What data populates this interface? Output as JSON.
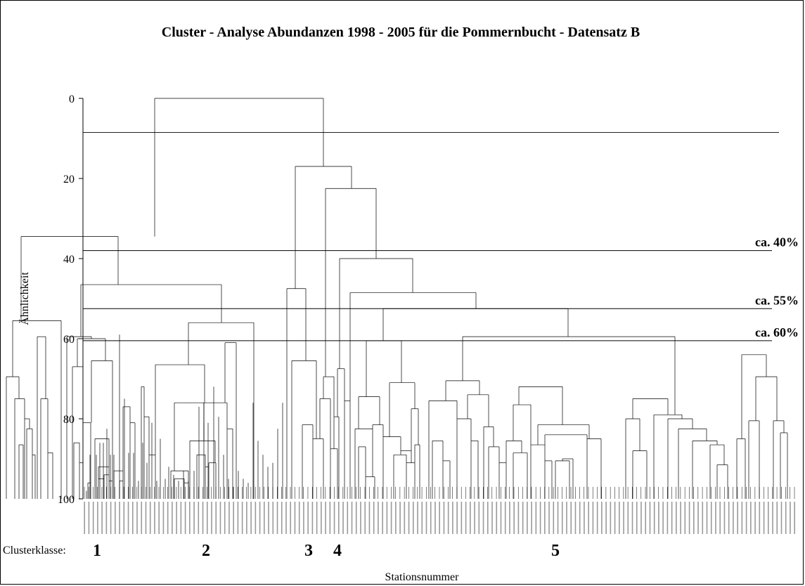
{
  "chart_data": {
    "type": "dendrogram",
    "title": "Cluster - Analyse Abundanzen 1998 - 2005 für die Pommernbucht  - Datensatz B",
    "ylabel": "Ähnlichkeit",
    "xlabel": "Stationsnummer",
    "ylim": [
      0,
      100
    ],
    "yticks": [
      "0",
      "20",
      "40",
      "60",
      "80",
      "100"
    ],
    "grid": false,
    "reference_lines": [
      {
        "value": 8.5,
        "label": ""
      },
      {
        "value": 38,
        "label": "ca. 40%"
      },
      {
        "value": 52.5,
        "label": "ca. 55%"
      },
      {
        "value": 60.5,
        "label": "ca. 60%"
      }
    ],
    "cluster_classes_label": "Clusterklasse:",
    "cluster_classes": [
      "1",
      "2",
      "3",
      "4",
      "5"
    ],
    "leaf_count": 163,
    "merges": [
      {
        "x1": 9,
        "x2": 27,
        "h": 69.5
      },
      {
        "x1": 21,
        "x2": 35,
        "h": 75
      },
      {
        "x1": 27,
        "x2": 33,
        "h": 86.5
      },
      {
        "x1": 35,
        "x2": 42,
        "h": 80
      },
      {
        "x1": 38,
        "x2": 46,
        "h": 82.5
      },
      {
        "x1": 46,
        "x2": 50,
        "h": 89
      },
      {
        "x1": 18,
        "x2": 87,
        "h": 55.5
      },
      {
        "x1": 53,
        "x2": 65,
        "h": 59.5
      },
      {
        "x1": 58,
        "x2": 68,
        "h": 75
      },
      {
        "x1": 68,
        "x2": 75,
        "h": 88.5
      },
      {
        "x1": 30,
        "x2": 168,
        "h": 34.5
      },
      {
        "x1": 95,
        "x2": 130,
        "h": 59.5
      },
      {
        "x1": 110,
        "x2": 150,
        "h": 60
      },
      {
        "x1": 103,
        "x2": 118,
        "h": 67
      },
      {
        "x1": 105,
        "x2": 113,
        "h": 86
      },
      {
        "x1": 113,
        "x2": 118,
        "h": 91
      },
      {
        "x1": 118,
        "x2": 129,
        "h": 81
      },
      {
        "x1": 125,
        "x2": 129,
        "h": 96
      },
      {
        "x1": 130,
        "x2": 160,
        "h": 65.5
      },
      {
        "x1": 135,
        "x2": 155,
        "h": 85
      },
      {
        "x1": 140,
        "x2": 155,
        "h": 92
      },
      {
        "x1": 140,
        "x2": 148,
        "h": 95
      },
      {
        "x1": 148,
        "x2": 155,
        "h": 94
      },
      {
        "x1": 155,
        "x2": 160,
        "h": 95.5
      },
      {
        "x1": 162,
        "x2": 175,
        "h": 93
      },
      {
        "x1": 170,
        "x2": 175,
        "h": 95.5
      },
      {
        "x1": 175,
        "x2": 185,
        "h": 77
      },
      {
        "x1": 185,
        "x2": 192,
        "h": 81
      },
      {
        "x1": 115,
        "x2": 315,
        "h": 46.5
      },
      {
        "x1": 268,
        "x2": 361,
        "h": 56
      },
      {
        "x1": 201,
        "x2": 205,
        "h": 72
      },
      {
        "x1": 205,
        "x2": 212,
        "h": 79.5
      },
      {
        "x1": 212,
        "x2": 221,
        "h": 89
      },
      {
        "x1": 243,
        "x2": 268,
        "h": 93
      },
      {
        "x1": 248,
        "x2": 262,
        "h": 95
      },
      {
        "x1": 262,
        "x2": 268,
        "h": 96
      },
      {
        "x1": 248,
        "x2": 290,
        "h": 76
      },
      {
        "x1": 221,
        "x2": 291,
        "h": 66.5
      },
      {
        "x1": 270,
        "x2": 306,
        "h": 85.5
      },
      {
        "x1": 280,
        "x2": 292,
        "h": 89
      },
      {
        "x1": 292,
        "x2": 297,
        "h": 92
      },
      {
        "x1": 297,
        "x2": 307,
        "h": 91
      },
      {
        "x1": 290,
        "x2": 323,
        "h": 76
      },
      {
        "x1": 323,
        "x2": 331,
        "h": 82.5
      },
      {
        "x1": 320,
        "x2": 336,
        "h": 61
      },
      {
        "x1": 408,
        "x2": 435,
        "h": 47.5
      },
      {
        "x1": 415,
        "x2": 450,
        "h": 65.5
      },
      {
        "x1": 430,
        "x2": 445,
        "h": 81.5
      },
      {
        "x1": 445,
        "x2": 460,
        "h": 85
      },
      {
        "x1": 460,
        "x2": 475,
        "h": 69.5
      },
      {
        "x1": 475,
        "x2": 482,
        "h": 79.5
      },
      {
        "x1": 420,
        "x2": 500,
        "h": 17
      },
      {
        "x1": 455,
        "x2": 470,
        "h": 75
      },
      {
        "x1": 470,
        "x2": 480,
        "h": 87.5
      },
      {
        "x1": 463,
        "x2": 535,
        "h": 22.5
      },
      {
        "x1": 480,
        "x2": 490,
        "h": 67.5
      },
      {
        "x1": 490,
        "x2": 498,
        "h": 75.5
      },
      {
        "x1": 483,
        "x2": 587,
        "h": 40
      },
      {
        "x1": 498,
        "x2": 677,
        "h": 48.5
      },
      {
        "x1": 545,
        "x2": 808,
        "h": 52.5
      },
      {
        "x1": 521,
        "x2": 571,
        "h": 60.5
      },
      {
        "x1": 505,
        "x2": 530,
        "h": 82.5
      },
      {
        "x1": 510,
        "x2": 520,
        "h": 87
      },
      {
        "x1": 520,
        "x2": 533,
        "h": 94.5
      },
      {
        "x1": 510,
        "x2": 540,
        "h": 74.5
      },
      {
        "x1": 530,
        "x2": 545,
        "h": 81.5
      },
      {
        "x1": 554,
        "x2": 590,
        "h": 71
      },
      {
        "x1": 545,
        "x2": 570,
        "h": 84.5
      },
      {
        "x1": 560,
        "x2": 578,
        "h": 89
      },
      {
        "x1": 570,
        "x2": 585,
        "h": 88
      },
      {
        "x1": 585,
        "x2": 595,
        "h": 77.5
      },
      {
        "x1": 578,
        "x2": 590,
        "h": 91
      },
      {
        "x1": 590,
        "x2": 597,
        "h": 86.5
      },
      {
        "x1": 658,
        "x2": 960,
        "h": 59.5
      },
      {
        "x1": 634,
        "x2": 682,
        "h": 70.5
      },
      {
        "x1": 610,
        "x2": 650,
        "h": 75.5
      },
      {
        "x1": 615,
        "x2": 630,
        "h": 85.5
      },
      {
        "x1": 630,
        "x2": 640,
        "h": 90.5
      },
      {
        "x1": 665,
        "x2": 695,
        "h": 74
      },
      {
        "x1": 650,
        "x2": 670,
        "h": 80
      },
      {
        "x1": 670,
        "x2": 680,
        "h": 85.5
      },
      {
        "x1": 688,
        "x2": 702,
        "h": 82
      },
      {
        "x1": 695,
        "x2": 710,
        "h": 87
      },
      {
        "x1": 710,
        "x2": 720,
        "h": 91
      },
      {
        "x1": 738,
        "x2": 800,
        "h": 72
      },
      {
        "x1": 730,
        "x2": 755,
        "h": 76.5
      },
      {
        "x1": 720,
        "x2": 742,
        "h": 85.5
      },
      {
        "x1": 730,
        "x2": 750,
        "h": 88.5
      },
      {
        "x1": 765,
        "x2": 838,
        "h": 81.5
      },
      {
        "x1": 755,
        "x2": 775,
        "h": 86.5
      },
      {
        "x1": 775,
        "x2": 785,
        "h": 90.5
      },
      {
        "x1": 775,
        "x2": 835,
        "h": 84
      },
      {
        "x1": 790,
        "x2": 810,
        "h": 90.5
      },
      {
        "x1": 800,
        "x2": 815,
        "h": 90
      },
      {
        "x1": 835,
        "x2": 855,
        "h": 85
      },
      {
        "x1": 900,
        "x2": 950,
        "h": 75
      },
      {
        "x1": 890,
        "x2": 910,
        "h": 80
      },
      {
        "x1": 900,
        "x2": 920,
        "h": 88
      },
      {
        "x1": 930,
        "x2": 970,
        "h": 79
      },
      {
        "x1": 950,
        "x2": 985,
        "h": 80
      },
      {
        "x1": 965,
        "x2": 1005,
        "h": 82.5
      },
      {
        "x1": 985,
        "x2": 1020,
        "h": 85.5
      },
      {
        "x1": 1010,
        "x2": 1030,
        "h": 86.5
      },
      {
        "x1": 1020,
        "x2": 1035,
        "h": 91.5
      },
      {
        "x1": 1055,
        "x2": 1090,
        "h": 64
      },
      {
        "x1": 1065,
        "x2": 1080,
        "h": 80.5
      },
      {
        "x1": 1075,
        "x2": 1105,
        "h": 69.5
      },
      {
        "x1": 1100,
        "x2": 1115,
        "h": 80.5
      },
      {
        "x1": 1110,
        "x2": 1120,
        "h": 83.5
      },
      {
        "x1": 1048,
        "x2": 1060,
        "h": 85
      }
    ],
    "leaf_heights": [
      {
        "x": 123,
        "h": 98
      },
      {
        "x": 128,
        "h": 89
      },
      {
        "x": 137,
        "h": 89
      },
      {
        "x": 142,
        "h": 86
      },
      {
        "x": 147,
        "h": 86
      },
      {
        "x": 152,
        "h": 82.5
      },
      {
        "x": 157,
        "h": 89
      },
      {
        "x": 162,
        "h": 89
      },
      {
        "x": 170,
        "h": 59
      },
      {
        "x": 177,
        "h": 75
      },
      {
        "x": 183,
        "h": 88.5
      },
      {
        "x": 190,
        "h": 88.5
      },
      {
        "x": 197,
        "h": 95.5
      },
      {
        "x": 203,
        "h": 86
      },
      {
        "x": 209,
        "h": 91
      },
      {
        "x": 216,
        "h": 81
      },
      {
        "x": 223,
        "h": 95.5
      },
      {
        "x": 228,
        "h": 85
      },
      {
        "x": 235,
        "h": 95
      },
      {
        "x": 240,
        "h": 92
      },
      {
        "x": 247,
        "h": 94
      },
      {
        "x": 254,
        "h": 95.5
      },
      {
        "x": 261,
        "h": 93
      },
      {
        "x": 268,
        "h": 95.5
      },
      {
        "x": 276,
        "h": 93
      },
      {
        "x": 283,
        "h": 77
      },
      {
        "x": 290,
        "h": 81
      },
      {
        "x": 296,
        "h": 81
      },
      {
        "x": 304,
        "h": 72
      },
      {
        "x": 311,
        "h": 79.5
      },
      {
        "x": 318,
        "h": 89
      },
      {
        "x": 325,
        "h": 95
      },
      {
        "x": 332,
        "h": 97
      },
      {
        "x": 339,
        "h": 93
      },
      {
        "x": 346,
        "h": 95
      },
      {
        "x": 353,
        "h": 96
      },
      {
        "x": 360,
        "h": 76
      },
      {
        "x": 367,
        "h": 85.5
      },
      {
        "x": 374,
        "h": 89
      },
      {
        "x": 381,
        "h": 92
      },
      {
        "x": 388,
        "h": 91
      },
      {
        "x": 395,
        "h": 82.5
      },
      {
        "x": 402,
        "h": 76
      }
    ]
  }
}
